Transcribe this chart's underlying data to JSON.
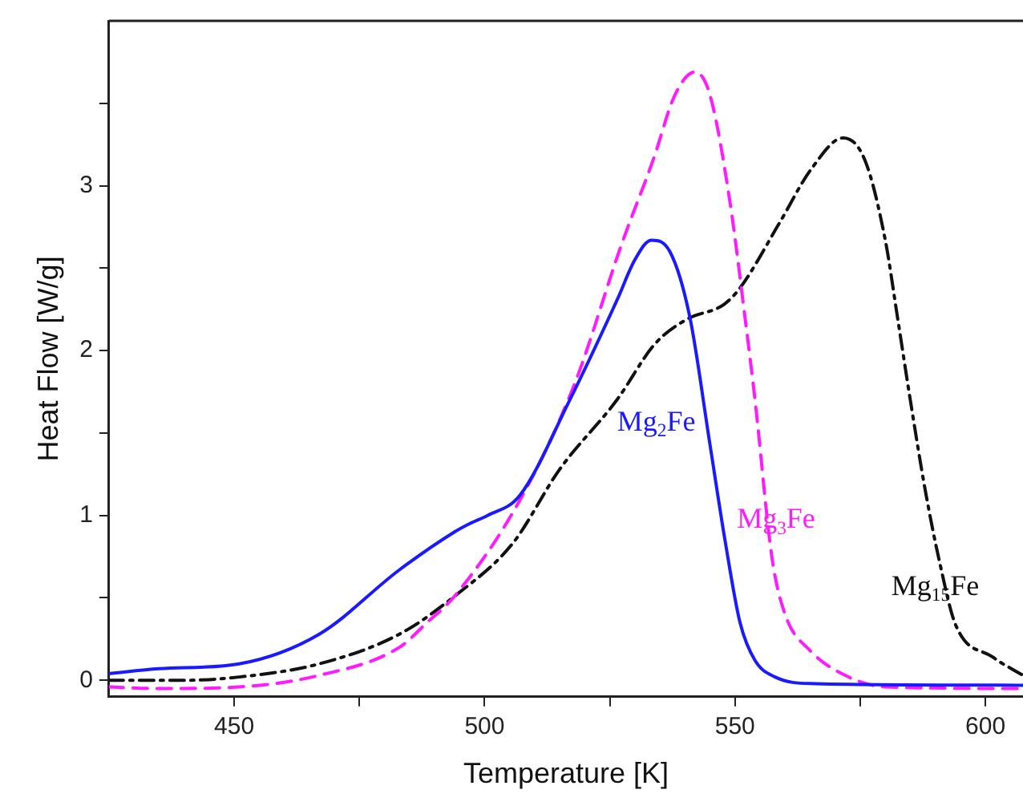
{
  "chart_data": {
    "type": "line",
    "xlabel": "Temperature [K]",
    "ylabel": "Heat Flow [W/g]",
    "xlim": [
      425,
      607.5
    ],
    "ylim": [
      -0.1,
      4.0
    ],
    "xticks": [
      450,
      {
        "value": 475,
        "label": null
      },
      500,
      {
        "value": 525,
        "label": null
      },
      550,
      {
        "value": 575,
        "label": null
      },
      600
    ],
    "yticks": [
      0,
      {
        "value": 0.5,
        "label": null
      },
      1,
      {
        "value": 1.5,
        "label": null
      },
      2,
      {
        "value": 2.5,
        "label": null
      },
      3,
      {
        "value": 3.5,
        "label": null
      }
    ],
    "grid": false,
    "legend": false,
    "marker": "none",
    "series": [
      {
        "color": "#1a1aff",
        "line_style": "solid",
        "x": [
          425,
          435,
          451,
          467,
          483,
          494,
          497,
          500.6,
          507,
          517,
          526.5,
          530,
          533.3,
          537,
          541,
          545,
          548,
          551,
          554,
          558,
          565,
          607.5
        ],
        "values": [
          0.04,
          0.07,
          0.1,
          0.28,
          0.67,
          0.9,
          0.95,
          1.0,
          1.12,
          1.7,
          2.31,
          2.55,
          2.67,
          2.6,
          2.2,
          1.43,
          0.85,
          0.35,
          0.12,
          0.02,
          -0.02,
          -0.03
        ]
      },
      {
        "color": "#ff1aff",
        "line_style": "dashed",
        "x": [
          425,
          435,
          451,
          467,
          483,
          488.5,
          494,
          507,
          518,
          527.3,
          533.7,
          538,
          542,
          545,
          549,
          552,
          554,
          557.4,
          560,
          565,
          572,
          580,
          607.5
        ],
        "values": [
          -0.04,
          -0.05,
          -0.04,
          0.03,
          0.2,
          0.35,
          0.51,
          1.09,
          1.8,
          2.64,
          3.16,
          3.55,
          3.69,
          3.55,
          2.9,
          2.2,
          1.7,
          0.74,
          0.4,
          0.18,
          0.03,
          -0.04,
          -0.05
        ]
      },
      {
        "color": "#111111",
        "line_style": "dashdot",
        "x": [
          425,
          440,
          451,
          467,
          483,
          494,
          505.6,
          515,
          526.4,
          534,
          540.4,
          547.8,
          551,
          558.8,
          565.2,
          571.6,
          576,
          580,
          582.5,
          585,
          588,
          590.9,
          594,
          601.5,
          607.5
        ],
        "values": [
          0.0,
          0.0,
          0.02,
          0.1,
          0.28,
          0.51,
          0.83,
          1.28,
          1.7,
          2.04,
          2.19,
          2.28,
          2.38,
          2.77,
          3.1,
          3.29,
          3.15,
          2.67,
          2.19,
          1.7,
          1.15,
          0.71,
          0.34,
          0.14,
          0.03
        ]
      }
    ],
    "annotations": [
      "Mg$_{2}$Fe",
      "Mg$_{3}$Fe",
      "Mg$_{15}$Fe"
    ]
  }
}
